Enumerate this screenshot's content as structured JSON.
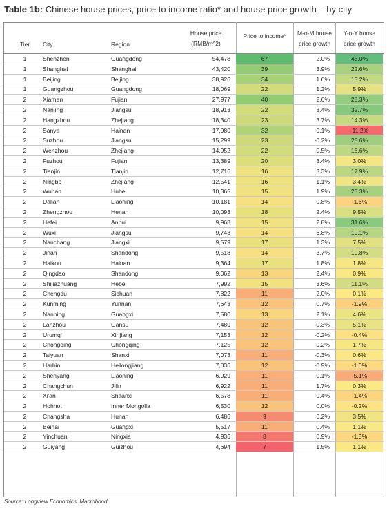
{
  "title_prefix": "Table 1b:",
  "title_text": "Chinese house prices, price to income ratio* and house price growth – by city",
  "headers": {
    "tier": "Tier",
    "city": "City",
    "region": "Region",
    "price_l1": "House price",
    "price_l2": "(RMB/m^2)",
    "pti": "Price to income*",
    "mom_l1": "M-o-M house",
    "mom_l2": "price growth",
    "yoy_l1": "Y-o-Y house",
    "yoy_l2": "price growth"
  },
  "rows": [
    {
      "tier": "1",
      "city": "Shenzhen",
      "region": "Guangdong",
      "price": "54,478",
      "pti": "67",
      "mom": "2.0%",
      "yoy": "43.0%",
      "pti_color": "#5fbb6e",
      "yoy_color": "#63be7b"
    },
    {
      "tier": "1",
      "city": "Shanghai",
      "region": "Shanghai",
      "price": "43,420",
      "pti": "39",
      "mom": "3.9%",
      "yoy": "22.6%",
      "pti_color": "#93cc73",
      "yoy_color": "#a9d27f"
    },
    {
      "tier": "1",
      "city": "Beijing",
      "region": "Beijing",
      "price": "38,926",
      "pti": "34",
      "mom": "1.6%",
      "yoy": "15.2%",
      "pti_color": "#a6d175",
      "yoy_color": "#c3da80"
    },
    {
      "tier": "1",
      "city": "Guangzhou",
      "region": "Guangdong",
      "price": "18,069",
      "pti": "22",
      "mom": "1.2%",
      "yoy": "5.9%",
      "pti_color": "#d2dc7a",
      "yoy_color": "#e6e283"
    },
    {
      "tier": "2",
      "city": "Xiamen",
      "region": "Fujian",
      "price": "27,977",
      "pti": "40",
      "mom": "2.6%",
      "yoy": "28.3%",
      "pti_color": "#90cb72",
      "yoy_color": "#95cd7e"
    },
    {
      "tier": "2",
      "city": "Nanjing",
      "region": "Jiangsu",
      "price": "18,913",
      "pti": "22",
      "mom": "3.4%",
      "yoy": "32.7%",
      "pti_color": "#d2dc7a",
      "yoy_color": "#86c97d"
    },
    {
      "tier": "2",
      "city": "Hangzhou",
      "region": "Zhejiang",
      "price": "18,340",
      "pti": "23",
      "mom": "3.7%",
      "yoy": "14.3%",
      "pti_color": "#ceda79",
      "yoy_color": "#c6db80"
    },
    {
      "tier": "2",
      "city": "Sanya",
      "region": "Hainan",
      "price": "17,980",
      "pti": "32",
      "mom": "0.1%",
      "yoy": "-11.2%",
      "pti_color": "#afd376",
      "yoy_color": "#f8696b"
    },
    {
      "tier": "2",
      "city": "Suzhou",
      "region": "Jiangsu",
      "price": "15,299",
      "pti": "23",
      "mom": "-0.2%",
      "yoy": "25.6%",
      "pti_color": "#ceda79",
      "yoy_color": "#9fcf7e"
    },
    {
      "tier": "2",
      "city": "Wenzhou",
      "region": "Zhejiang",
      "price": "14,952",
      "pti": "22",
      "mom": "-0.5%",
      "yoy": "16.6%",
      "pti_color": "#d2dc7a",
      "yoy_color": "#bdd880"
    },
    {
      "tier": "2",
      "city": "Fuzhou",
      "region": "Fujian",
      "price": "13,389",
      "pti": "20",
      "mom": "3.4%",
      "yoy": "3.0%",
      "pti_color": "#dbde7b",
      "yoy_color": "#f3e683"
    },
    {
      "tier": "2",
      "city": "Tianjin",
      "region": "Tianjin",
      "price": "12,716",
      "pti": "16",
      "mom": "3.3%",
      "yoy": "17.9%",
      "pti_color": "#eee27e",
      "yoy_color": "#b8d780"
    },
    {
      "tier": "2",
      "city": "Ningbo",
      "region": "Zhejiang",
      "price": "12,541",
      "pti": "16",
      "mom": "1.1%",
      "yoy": "3.4%",
      "pti_color": "#eee27e",
      "yoy_color": "#f1e583"
    },
    {
      "tier": "2",
      "city": "Wuhan",
      "region": "Hubei",
      "price": "10,365",
      "pti": "15",
      "mom": "1.9%",
      "yoy": "23.3%",
      "pti_color": "#f2e27f",
      "yoy_color": "#a6d17f"
    },
    {
      "tier": "2",
      "city": "Dalian",
      "region": "Liaoning",
      "price": "10,181",
      "pti": "14",
      "mom": "0.8%",
      "yoy": "-1.6%",
      "pti_color": "#f6e07f",
      "yoy_color": "#fdd37f"
    },
    {
      "tier": "2",
      "city": "Zhengzhou",
      "region": "Henan",
      "price": "10,093",
      "pti": "18",
      "mom": "2.4%",
      "yoy": "9.5%",
      "pti_color": "#e6e07d",
      "yoy_color": "#dadf82"
    },
    {
      "tier": "2",
      "city": "Hefei",
      "region": "Anhui",
      "price": "9,968",
      "pti": "15",
      "mom": "2.8%",
      "yoy": "31.6%",
      "pti_color": "#f2e27f",
      "yoy_color": "#89ca7d"
    },
    {
      "tier": "2",
      "city": "Wuxi",
      "region": "Jiangsu",
      "price": "9,743",
      "pti": "14",
      "mom": "6.8%",
      "yoy": "19.1%",
      "pti_color": "#f6e07f",
      "yoy_color": "#b4d680"
    },
    {
      "tier": "2",
      "city": "Nanchang",
      "region": "Jiangxi",
      "price": "9,579",
      "pti": "17",
      "mom": "1.3%",
      "yoy": "7.5%",
      "pti_color": "#eae17e",
      "yoy_color": "#e1e182"
    },
    {
      "tier": "2",
      "city": "Jinan",
      "region": "Shandong",
      "price": "9,518",
      "pti": "14",
      "mom": "3.7%",
      "yoy": "10.8%",
      "pti_color": "#f6e07f",
      "yoy_color": "#d4dd81"
    },
    {
      "tier": "2",
      "city": "Haikou",
      "region": "Hainan",
      "price": "9,364",
      "pti": "17",
      "mom": "1.8%",
      "yoy": "1.8%",
      "pti_color": "#eae17e",
      "yoy_color": "#f7e783"
    },
    {
      "tier": "2",
      "city": "Qingdao",
      "region": "Shandong",
      "price": "9,062",
      "pti": "13",
      "mom": "2.4%",
      "yoy": "0.9%",
      "pti_color": "#f9d57e",
      "yoy_color": "#fae883"
    },
    {
      "tier": "2",
      "city": "Shijiazhuang",
      "region": "Hebei",
      "price": "7,992",
      "pti": "15",
      "mom": "3.6%",
      "yoy": "11.1%",
      "pti_color": "#f2e27f",
      "yoy_color": "#d2dc81"
    },
    {
      "tier": "2",
      "city": "Chengdu",
      "region": "Sichuan",
      "price": "7,822",
      "pti": "11",
      "mom": "2.0%",
      "yoy": "0.1%",
      "pti_color": "#f8ae76",
      "yoy_color": "#fce983"
    },
    {
      "tier": "2",
      "city": "Kunming",
      "region": "Yunnan",
      "price": "7,643",
      "pti": "12",
      "mom": "0.7%",
      "yoy": "-1.9%",
      "pti_color": "#f9c47a",
      "yoy_color": "#fdd07e"
    },
    {
      "tier": "2",
      "city": "Nanning",
      "region": "Guangxi",
      "price": "7,580",
      "pti": "13",
      "mom": "2.1%",
      "yoy": "4.6%",
      "pti_color": "#f9d57e",
      "yoy_color": "#ebe483"
    },
    {
      "tier": "2",
      "city": "Lanzhou",
      "region": "Gansu",
      "price": "7,480",
      "pti": "12",
      "mom": "-0.3%",
      "yoy": "5.1%",
      "pti_color": "#f9c47a",
      "yoy_color": "#e9e383"
    },
    {
      "tier": "2",
      "city": "Urumqi",
      "region": "Xinjiang",
      "price": "7,153",
      "pti": "12",
      "mom": "-0.2%",
      "yoy": "-0.4%",
      "pti_color": "#f9c47a",
      "yoy_color": "#fde082"
    },
    {
      "tier": "2",
      "city": "Chongqing",
      "region": "Chongqing",
      "price": "7,125",
      "pti": "12",
      "mom": "-0.2%",
      "yoy": "1.7%",
      "pti_color": "#f9c47a",
      "yoy_color": "#f7e783"
    },
    {
      "tier": "2",
      "city": "Taiyuan",
      "region": "Shanxi",
      "price": "7,073",
      "pti": "11",
      "mom": "-0.3%",
      "yoy": "0.6%",
      "pti_color": "#f8ae76",
      "yoy_color": "#fbe883"
    },
    {
      "tier": "2",
      "city": "Harbin",
      "region": "Heilongjiang",
      "price": "7,036",
      "pti": "12",
      "mom": "-0.9%",
      "yoy": "-1.0%",
      "pti_color": "#f9c47a",
      "yoy_color": "#fdd97f"
    },
    {
      "tier": "2",
      "city": "Shenyang",
      "region": "Liaoning",
      "price": "6,929",
      "pti": "11",
      "mom": "-0.1%",
      "yoy": "-5.1%",
      "pti_color": "#f8ae76",
      "yoy_color": "#fbab77"
    },
    {
      "tier": "2",
      "city": "Changchun",
      "region": "Jilin",
      "price": "6,922",
      "pti": "11",
      "mom": "1.7%",
      "yoy": "0.3%",
      "pti_color": "#f8ae76",
      "yoy_color": "#fce983"
    },
    {
      "tier": "2",
      "city": "Xi'an",
      "region": "Shaanxi",
      "price": "6,578",
      "pti": "11",
      "mom": "0.4%",
      "yoy": "-1.4%",
      "pti_color": "#f8ae76",
      "yoy_color": "#fdd57f"
    },
    {
      "tier": "2",
      "city": "Hohhot",
      "region": "Inner Mongolia",
      "price": "6,530",
      "pti": "12",
      "mom": "0.0%",
      "yoy": "-0.2%",
      "pti_color": "#f9c47a",
      "yoy_color": "#fde382"
    },
    {
      "tier": "2",
      "city": "Changsha",
      "region": "Hunan",
      "price": "6,486",
      "pti": "9",
      "mom": "0.2%",
      "yoy": "3.5%",
      "pti_color": "#f58b70",
      "yoy_color": "#f1e583"
    },
    {
      "tier": "2",
      "city": "Beihai",
      "region": "Guangxi",
      "price": "5,517",
      "pti": "11",
      "mom": "0.4%",
      "yoy": "1.1%",
      "pti_color": "#f8ae76",
      "yoy_color": "#f9e883"
    },
    {
      "tier": "2",
      "city": "Yinchuan",
      "region": "Ningxia",
      "price": "4,936",
      "pti": "8",
      "mom": "0.9%",
      "yoy": "-1.3%",
      "pti_color": "#f4786d",
      "yoy_color": "#fdd67f"
    },
    {
      "tier": "2",
      "city": "Guiyang",
      "region": "Guizhou",
      "price": "4,694",
      "pti": "7",
      "mom": "1.5%",
      "yoy": "1.1%",
      "pti_color": "#f3636b",
      "yoy_color": "#f9e883"
    }
  ],
  "source": "Source: Longview Economics, Macrobond"
}
